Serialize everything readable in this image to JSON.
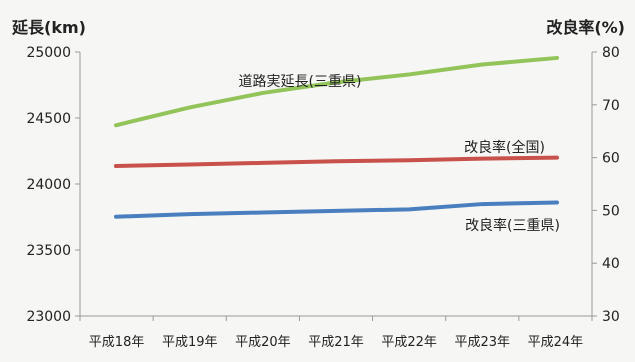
{
  "chart_data": {
    "type": "line",
    "categories": [
      "平成18年",
      "平成19年",
      "平成20年",
      "平成21年",
      "平成22年",
      "平成23年",
      "平成24年"
    ],
    "left_axis": {
      "label": "延長(km)",
      "ylim": [
        23000,
        25000
      ],
      "ticks": [
        23000,
        23500,
        24000,
        24500,
        25000
      ]
    },
    "right_axis": {
      "label": "改良率(%)",
      "ylim": [
        30,
        80
      ],
      "ticks": [
        30,
        40,
        50,
        60,
        70,
        80
      ]
    },
    "grid": false,
    "series": [
      {
        "name": "道路実延長(三重県)",
        "axis": "left",
        "color": "#92c45a",
        "values": [
          24445,
          24580,
          24690,
          24770,
          24830,
          24905,
          24955
        ]
      },
      {
        "name": "改良率(全国)",
        "axis": "right",
        "color": "#c8514b",
        "values": [
          58.4,
          58.7,
          59.0,
          59.3,
          59.5,
          59.8,
          60.0
        ]
      },
      {
        "name": "改良率(三重県)",
        "axis": "right",
        "color": "#4a7fbf",
        "values": [
          48.8,
          49.3,
          49.6,
          49.9,
          50.2,
          51.2,
          51.5
        ]
      }
    ]
  }
}
